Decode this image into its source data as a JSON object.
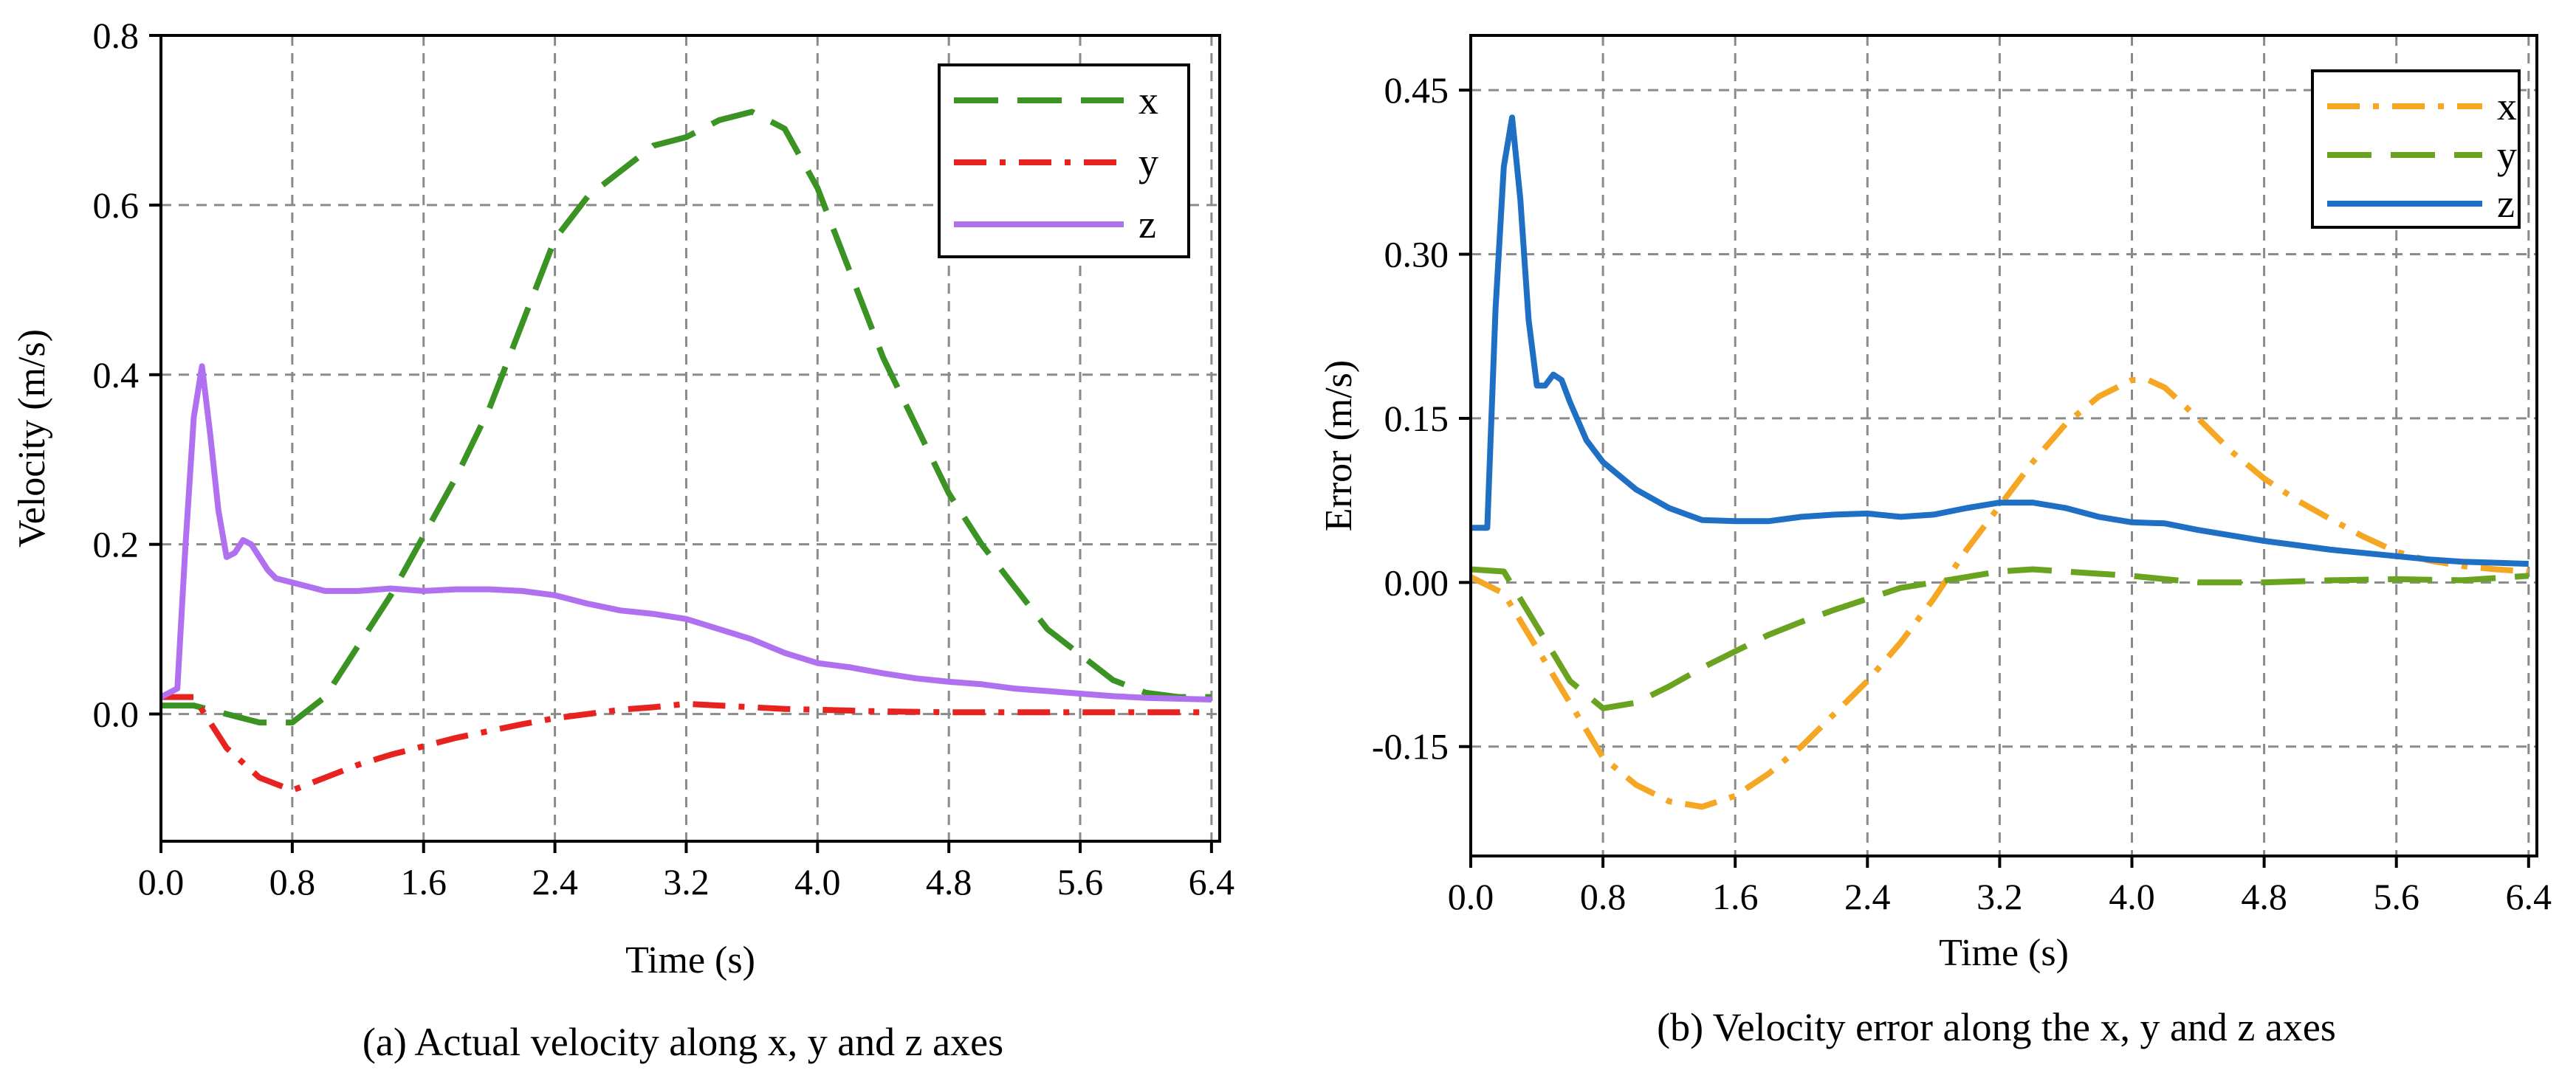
{
  "chart_data": [
    {
      "type": "line",
      "caption": "(a)  Actual velocity along x, y and z axes",
      "xlabel": "Time (s)",
      "ylabel": "Velocity (m/s)",
      "xlim": [
        0.0,
        6.45
      ],
      "ylim": [
        -0.15,
        0.8
      ],
      "xticks": [
        0.0,
        0.8,
        1.6,
        2.4,
        3.2,
        4.0,
        4.8,
        5.6,
        6.4
      ],
      "xtick_labels": [
        "0.0",
        "0.8",
        "1.6",
        "2.4",
        "3.2",
        "4.0",
        "4.8",
        "5.6",
        "6.4"
      ],
      "yticks": [
        0.0,
        0.2,
        0.4,
        0.6,
        0.8
      ],
      "ytick_labels": [
        "0.0",
        "0.2",
        "0.4",
        "0.6",
        "0.8"
      ],
      "grid": true,
      "legend_position": "top-right",
      "series": [
        {
          "name": "x",
          "color": "#3a9323",
          "dash": "dashed",
          "x": [
            0.0,
            0.2,
            0.4,
            0.6,
            0.8,
            1.0,
            1.2,
            1.4,
            1.6,
            1.8,
            2.0,
            2.2,
            2.4,
            2.6,
            2.8,
            3.0,
            3.2,
            3.4,
            3.6,
            3.8,
            4.0,
            4.2,
            4.4,
            4.6,
            4.8,
            5.0,
            5.2,
            5.4,
            5.6,
            5.8,
            6.0,
            6.2,
            6.4
          ],
          "y": [
            0.01,
            0.01,
            0.0,
            -0.01,
            -0.01,
            0.02,
            0.08,
            0.14,
            0.21,
            0.28,
            0.36,
            0.46,
            0.56,
            0.61,
            0.64,
            0.67,
            0.68,
            0.7,
            0.71,
            0.69,
            0.62,
            0.52,
            0.42,
            0.34,
            0.26,
            0.2,
            0.15,
            0.1,
            0.07,
            0.04,
            0.025,
            0.02,
            0.02
          ]
        },
        {
          "name": "y",
          "color": "#e8231f",
          "dash": "dash-dot",
          "x": [
            0.0,
            0.2,
            0.4,
            0.6,
            0.8,
            1.0,
            1.2,
            1.4,
            1.6,
            1.8,
            2.0,
            2.2,
            2.4,
            2.6,
            2.8,
            3.0,
            3.2,
            3.4,
            3.6,
            3.8,
            4.0,
            4.4,
            4.8,
            5.2,
            5.6,
            6.0,
            6.4
          ],
          "y": [
            0.02,
            0.02,
            -0.04,
            -0.075,
            -0.09,
            -0.075,
            -0.06,
            -0.048,
            -0.038,
            -0.028,
            -0.02,
            -0.012,
            -0.005,
            0.0,
            0.005,
            0.008,
            0.012,
            0.01,
            0.008,
            0.006,
            0.005,
            0.003,
            0.002,
            0.002,
            0.002,
            0.002,
            0.002
          ]
        },
        {
          "name": "z",
          "color": "#b071f0",
          "dash": "solid",
          "x": [
            0.0,
            0.1,
            0.15,
            0.2,
            0.25,
            0.3,
            0.35,
            0.4,
            0.45,
            0.5,
            0.55,
            0.6,
            0.65,
            0.7,
            0.8,
            1.0,
            1.2,
            1.4,
            1.6,
            1.8,
            2.0,
            2.2,
            2.4,
            2.6,
            2.8,
            3.0,
            3.2,
            3.4,
            3.6,
            3.8,
            4.0,
            4.2,
            4.4,
            4.6,
            4.8,
            5.0,
            5.2,
            5.4,
            5.6,
            5.8,
            6.0,
            6.2,
            6.4
          ],
          "y": [
            0.02,
            0.03,
            0.2,
            0.35,
            0.41,
            0.33,
            0.24,
            0.185,
            0.19,
            0.205,
            0.2,
            0.185,
            0.17,
            0.16,
            0.155,
            0.145,
            0.145,
            0.148,
            0.145,
            0.147,
            0.147,
            0.145,
            0.14,
            0.13,
            0.122,
            0.118,
            0.112,
            0.1,
            0.088,
            0.072,
            0.06,
            0.055,
            0.048,
            0.042,
            0.038,
            0.035,
            0.03,
            0.027,
            0.024,
            0.021,
            0.019,
            0.018,
            0.017
          ]
        }
      ]
    },
    {
      "type": "line",
      "caption": "(b) Velocity error along the x, y and z axes",
      "xlabel": "Time (s)",
      "ylabel": "Error (m/s)",
      "xlim": [
        0.0,
        6.45
      ],
      "ylim": [
        -0.25,
        0.5
      ],
      "xticks": [
        0.0,
        0.8,
        1.6,
        2.4,
        3.2,
        4.0,
        4.8,
        5.6,
        6.4
      ],
      "xtick_labels": [
        "0.0",
        "0.8",
        "1.6",
        "2.4",
        "3.2",
        "4.0",
        "4.8",
        "5.6",
        "6.4"
      ],
      "yticks": [
        -0.15,
        0.0,
        0.15,
        0.3,
        0.45
      ],
      "ytick_labels": [
        "-0.15",
        "0.00",
        "0.15",
        "0.30",
        "0.45"
      ],
      "grid": true,
      "legend_position": "top-right",
      "series": [
        {
          "name": "x",
          "color": "#f5a623",
          "dash": "dash-dot",
          "x": [
            0.0,
            0.2,
            0.4,
            0.6,
            0.8,
            1.0,
            1.2,
            1.4,
            1.6,
            1.8,
            2.0,
            2.2,
            2.4,
            2.6,
            2.8,
            3.0,
            3.2,
            3.4,
            3.6,
            3.8,
            4.0,
            4.1,
            4.2,
            4.4,
            4.6,
            4.8,
            5.0,
            5.2,
            5.4,
            5.6,
            5.8,
            6.0,
            6.2,
            6.4
          ],
          "y": [
            0.005,
            -0.01,
            -0.06,
            -0.11,
            -0.16,
            -0.185,
            -0.2,
            -0.205,
            -0.195,
            -0.175,
            -0.15,
            -0.12,
            -0.09,
            -0.055,
            -0.015,
            0.03,
            0.07,
            0.11,
            0.145,
            0.17,
            0.185,
            0.185,
            0.178,
            0.15,
            0.12,
            0.095,
            0.075,
            0.058,
            0.042,
            0.028,
            0.02,
            0.015,
            0.012,
            0.01
          ]
        },
        {
          "name": "y",
          "color": "#6aa31f",
          "dash": "dashed",
          "x": [
            0.0,
            0.2,
            0.4,
            0.6,
            0.8,
            1.0,
            1.2,
            1.4,
            1.6,
            1.8,
            2.0,
            2.2,
            2.4,
            2.6,
            2.8,
            3.0,
            3.2,
            3.4,
            3.6,
            3.8,
            4.0,
            4.4,
            4.8,
            5.2,
            5.6,
            6.0,
            6.4
          ],
          "y": [
            0.012,
            0.01,
            -0.04,
            -0.09,
            -0.115,
            -0.11,
            -0.095,
            -0.078,
            -0.063,
            -0.048,
            -0.036,
            -0.025,
            -0.015,
            -0.005,
            0.0,
            0.005,
            0.01,
            0.012,
            0.01,
            0.008,
            0.006,
            0.0,
            0.0,
            0.002,
            0.003,
            0.002,
            0.006
          ]
        },
        {
          "name": "z",
          "color": "#1f6fc4",
          "dash": "solid",
          "x": [
            0.0,
            0.1,
            0.15,
            0.2,
            0.25,
            0.3,
            0.35,
            0.4,
            0.45,
            0.5,
            0.55,
            0.6,
            0.7,
            0.8,
            1.0,
            1.2,
            1.4,
            1.6,
            1.8,
            2.0,
            2.2,
            2.4,
            2.6,
            2.8,
            3.0,
            3.2,
            3.4,
            3.6,
            3.8,
            4.0,
            4.2,
            4.4,
            4.6,
            4.8,
            5.0,
            5.2,
            5.4,
            5.6,
            5.8,
            6.0,
            6.2,
            6.4
          ],
          "y": [
            0.05,
            0.05,
            0.25,
            0.38,
            0.425,
            0.35,
            0.24,
            0.18,
            0.18,
            0.19,
            0.185,
            0.165,
            0.13,
            0.11,
            0.085,
            0.068,
            0.057,
            0.056,
            0.056,
            0.06,
            0.062,
            0.063,
            0.06,
            0.062,
            0.068,
            0.073,
            0.073,
            0.068,
            0.06,
            0.055,
            0.054,
            0.048,
            0.043,
            0.038,
            0.034,
            0.03,
            0.027,
            0.024,
            0.021,
            0.019,
            0.018,
            0.017
          ]
        }
      ]
    }
  ]
}
